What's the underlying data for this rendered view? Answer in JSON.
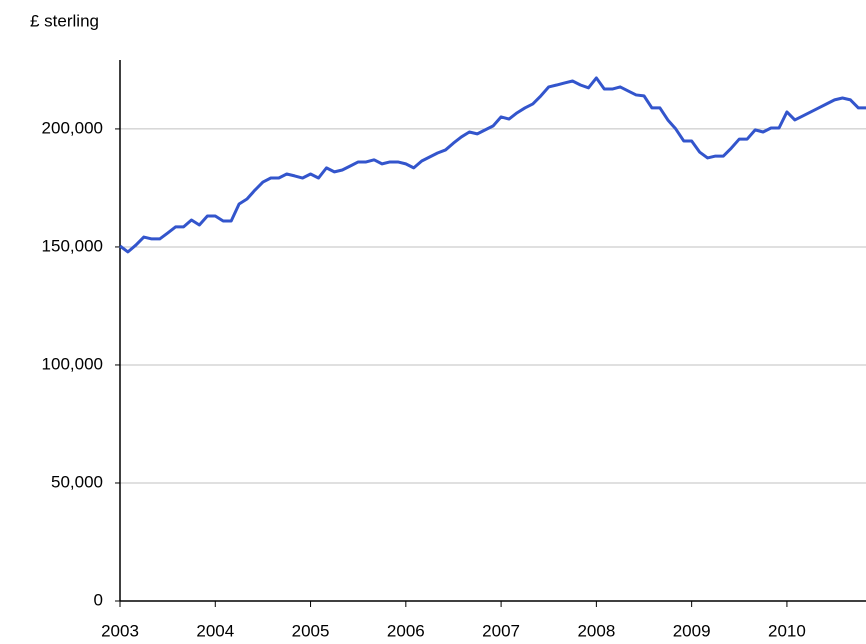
{
  "chart_data": {
    "type": "line",
    "y_axis_label": "£ sterling",
    "x": [
      2003.0,
      2003.083,
      2003.167,
      2003.25,
      2003.333,
      2003.417,
      2003.5,
      2003.583,
      2003.667,
      2003.75,
      2003.833,
      2003.917,
      2004.0,
      2004.083,
      2004.167,
      2004.25,
      2004.333,
      2004.417,
      2004.5,
      2004.583,
      2004.667,
      2004.75,
      2004.833,
      2004.917,
      2005.0,
      2005.083,
      2005.167,
      2005.25,
      2005.333,
      2005.417,
      2005.5,
      2005.583,
      2005.667,
      2005.75,
      2005.833,
      2005.917,
      2006.0,
      2006.083,
      2006.167,
      2006.25,
      2006.333,
      2006.417,
      2006.5,
      2006.583,
      2006.667,
      2006.75,
      2006.833,
      2006.917,
      2007.0,
      2007.083,
      2007.167,
      2007.25,
      2007.333,
      2007.417,
      2007.5,
      2007.583,
      2007.667,
      2007.75,
      2007.833,
      2007.917,
      2008.0,
      2008.083,
      2008.167,
      2008.25,
      2008.333,
      2008.417,
      2008.5,
      2008.583,
      2008.667,
      2008.75,
      2008.833,
      2008.917,
      2009.0,
      2009.083,
      2009.167,
      2009.25,
      2009.333,
      2009.417,
      2009.5,
      2009.583,
      2009.667,
      2009.75,
      2009.833,
      2009.917,
      2010.0,
      2010.083,
      2010.167,
      2010.25,
      2010.333,
      2010.417,
      2010.5,
      2010.583,
      2010.667,
      2010.75,
      2010.83
    ],
    "series": [
      {
        "color": "#3355cc",
        "values": [
          150400,
          147900,
          150800,
          154200,
          153400,
          153400,
          155900,
          158500,
          158500,
          161400,
          159300,
          163100,
          163100,
          161000,
          161000,
          168200,
          170300,
          174100,
          177500,
          179200,
          179200,
          180900,
          180100,
          179200,
          180900,
          179200,
          183500,
          181800,
          182600,
          184300,
          186000,
          186000,
          186900,
          185200,
          186000,
          186000,
          185200,
          183500,
          186400,
          188100,
          189800,
          191100,
          194000,
          196600,
          198700,
          197900,
          199600,
          201300,
          205100,
          204200,
          206800,
          208900,
          210600,
          214000,
          217800,
          218600,
          219500,
          220300,
          218600,
          217400,
          221600,
          216900,
          216900,
          217800,
          216100,
          214400,
          214000,
          208900,
          208900,
          203800,
          200000,
          194900,
          194900,
          190200,
          187700,
          188500,
          188500,
          191900,
          195700,
          195700,
          199600,
          198700,
          200400,
          200400,
          207200,
          203800,
          205500,
          207200,
          208900,
          210600,
          212300,
          213100,
          212300,
          208900,
          208900
        ]
      }
    ],
    "xlim": [
      2003,
      2010.83
    ],
    "xticks": [
      2003,
      2004,
      2005,
      2006,
      2007,
      2008,
      2009,
      2010
    ],
    "ylim": [
      0,
      229200
    ],
    "yticks": [
      0,
      {
        "value": 50000,
        "label": "50,000"
      },
      {
        "value": 100000,
        "label": "100,000"
      },
      {
        "value": 150000,
        "label": "150,000"
      },
      {
        "value": 200000,
        "label": "200,000"
      }
    ],
    "grid": true
  }
}
